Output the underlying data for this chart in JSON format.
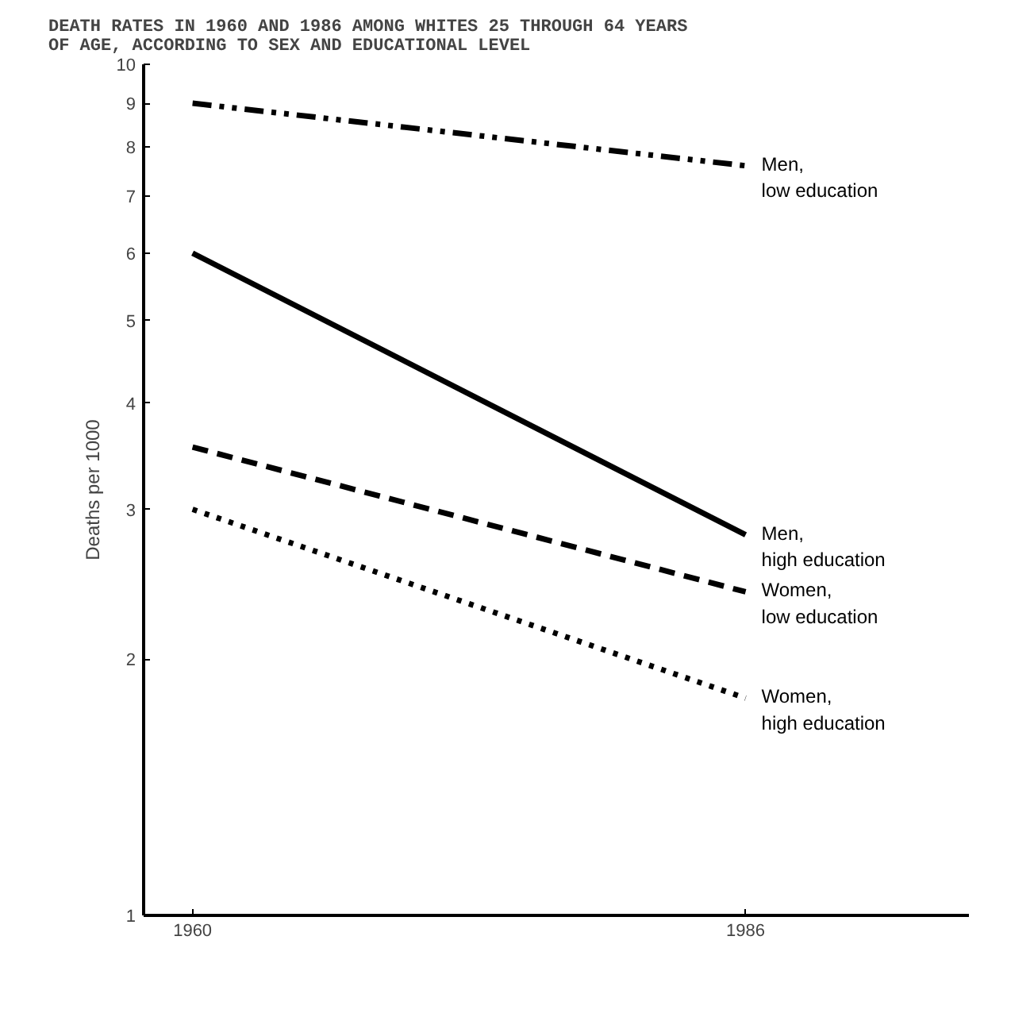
{
  "chart_data": {
    "type": "line",
    "title": "DEATH RATES IN 1960 AND 1986 AMONG WHITES 25 THROUGH 64 YEARS\nOF AGE, ACCORDING TO SEX AND EDUCATIONAL LEVEL",
    "ylabel": "Deaths per 1000",
    "x": [
      1960,
      1986
    ],
    "xlim": [
      1957.7,
      1996.5
    ],
    "xticks": [
      1960,
      1986
    ],
    "ylim": [
      1,
      10
    ],
    "yticks": [
      1,
      2,
      3,
      4,
      5,
      6,
      7,
      8,
      9,
      10
    ],
    "log": true,
    "grid": false,
    "legend": false,
    "series": [
      {
        "name": "Men,\nlow education",
        "color": "#000000",
        "values": [
          9.0,
          7.6
        ],
        "line_style": "dashdot"
      },
      {
        "name": "Men,\nhigh education",
        "color": "#000000",
        "values": [
          6.0,
          2.8
        ],
        "line_style": "solid"
      },
      {
        "name": "Women,\nlow education",
        "color": "#000000",
        "values": [
          3.55,
          2.4
        ],
        "line_style": "dashed"
      },
      {
        "name": "Women,\nhigh education",
        "color": "#000000",
        "values": [
          3.0,
          1.8
        ],
        "line_style": "dotted"
      }
    ]
  }
}
